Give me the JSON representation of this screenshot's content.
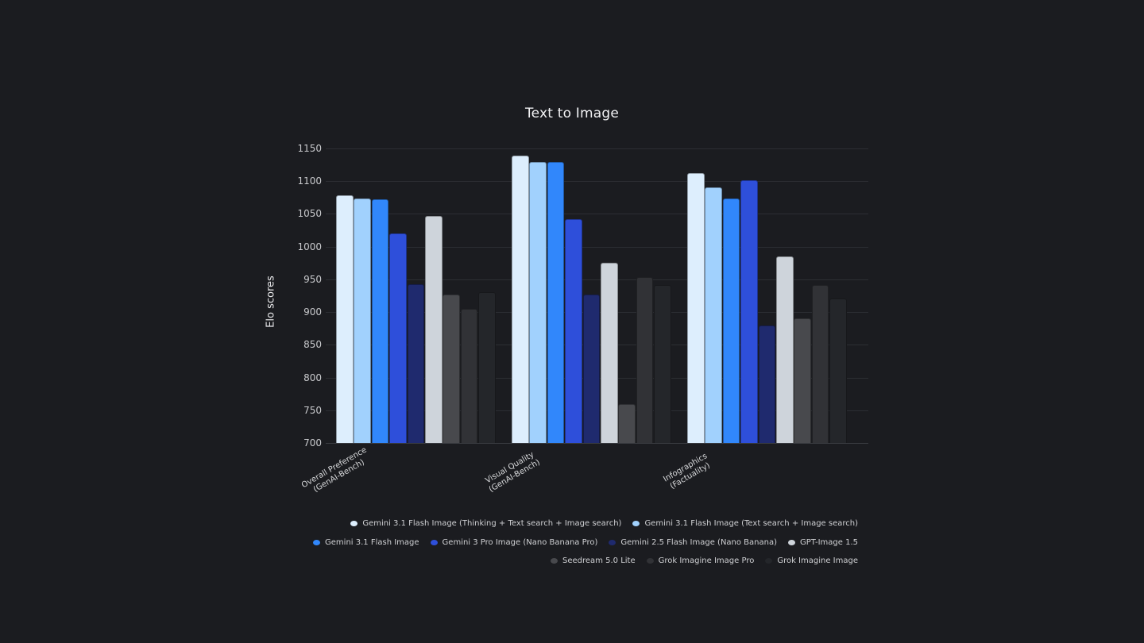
{
  "chart_data": {
    "type": "bar",
    "title": "Text to Image",
    "xlabel": "",
    "ylabel": "Elo scores",
    "ylim": [
      700,
      1150
    ],
    "yticks": [
      700,
      750,
      800,
      850,
      900,
      950,
      1000,
      1050,
      1100,
      1150
    ],
    "grid": true,
    "legend_position": "bottom-right",
    "categories": [
      "Overall Preference\n(GenAI-Bench)",
      "Visual Quality\n(GenAI-Bench)",
      "Infographics\n(Factuality)"
    ],
    "series": [
      {
        "name": "Gemini 3.1 Flash Image (Thinking + Text search + Image search)",
        "color": "#ddeefd",
        "values": [
          1079,
          1139,
          1113
        ]
      },
      {
        "name": "Gemini 3.1 Flash Image (Text search + Image search)",
        "color": "#a1d1fd",
        "values": [
          1073,
          1129,
          1091
        ]
      },
      {
        "name": "Gemini 3.1 Flash Image",
        "color": "#3187fb",
        "values": [
          1072,
          1129,
          1073
        ]
      },
      {
        "name": "Gemini 3 Pro Image (Nano Banana Pro)",
        "color": "#2e4fda",
        "values": [
          1020,
          1042,
          1101
        ]
      },
      {
        "name": "Gemini 2.5 Flash Image (Nano Banana)",
        "color": "#1f2a6e",
        "values": [
          942,
          927,
          880
        ]
      },
      {
        "name": "GPT-Image 1.5",
        "color": "#ced4db",
        "values": [
          1047,
          975,
          985
        ]
      },
      {
        "name": "Seedream 5.0 Lite",
        "color": "#48494d",
        "values": [
          927,
          759,
          891
        ]
      },
      {
        "name": "Grok Imagine Image Pro",
        "color": "#313236",
        "values": [
          905,
          953,
          941
        ]
      },
      {
        "name": "Grok Imagine Image",
        "color": "#24262a",
        "values": [
          931,
          941,
          921
        ]
      }
    ]
  },
  "legend_rows": [
    [
      0,
      1
    ],
    [
      2,
      3,
      4,
      5
    ],
    [
      6,
      7,
      8
    ]
  ]
}
